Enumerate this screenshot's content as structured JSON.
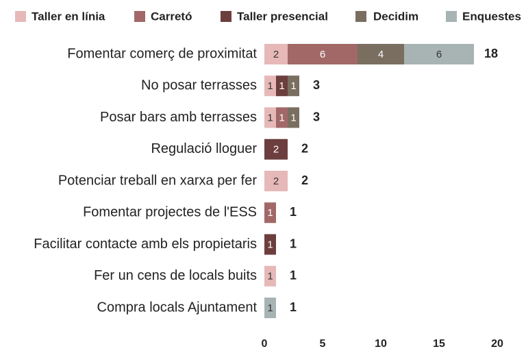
{
  "chart_data": {
    "type": "stacked-bar-horizontal",
    "categories": [
      "Fomentar comerç de proximitat",
      "No posar terrasses",
      "Posar bars amb terrasses",
      "Regulació lloguer",
      "Potenciar treball en xarxa per fer",
      "Fomentar projectes de l'ESS",
      "Facilitar contacte amb els propietaris",
      "Fer un cens de locals buits",
      "Compra locals Ajuntament"
    ],
    "series": [
      {
        "name": "Taller en línia",
        "color": "#e6b8b8",
        "values": [
          2,
          1,
          1,
          null,
          2,
          null,
          null,
          1,
          null
        ]
      },
      {
        "name": "Carretó",
        "color": "#a26868",
        "values": [
          6,
          null,
          1,
          null,
          null,
          1,
          null,
          null,
          null
        ]
      },
      {
        "name": "Taller presencial",
        "color": "#6d3e3e",
        "values": [
          null,
          1,
          null,
          2,
          null,
          null,
          1,
          null,
          null
        ]
      },
      {
        "name": "Decidim",
        "color": "#7a6e61",
        "values": [
          4,
          1,
          1,
          null,
          null,
          null,
          null,
          null,
          null
        ]
      },
      {
        "name": "Enquestes",
        "color": "#a8b3b3",
        "values": [
          6,
          null,
          null,
          null,
          null,
          null,
          null,
          null,
          1
        ]
      }
    ],
    "totals": [
      18,
      3,
      3,
      2,
      2,
      1,
      1,
      1,
      1
    ],
    "xlim": [
      0,
      20
    ],
    "xticks": [
      0,
      5,
      10,
      15,
      20
    ],
    "legend": "top"
  }
}
